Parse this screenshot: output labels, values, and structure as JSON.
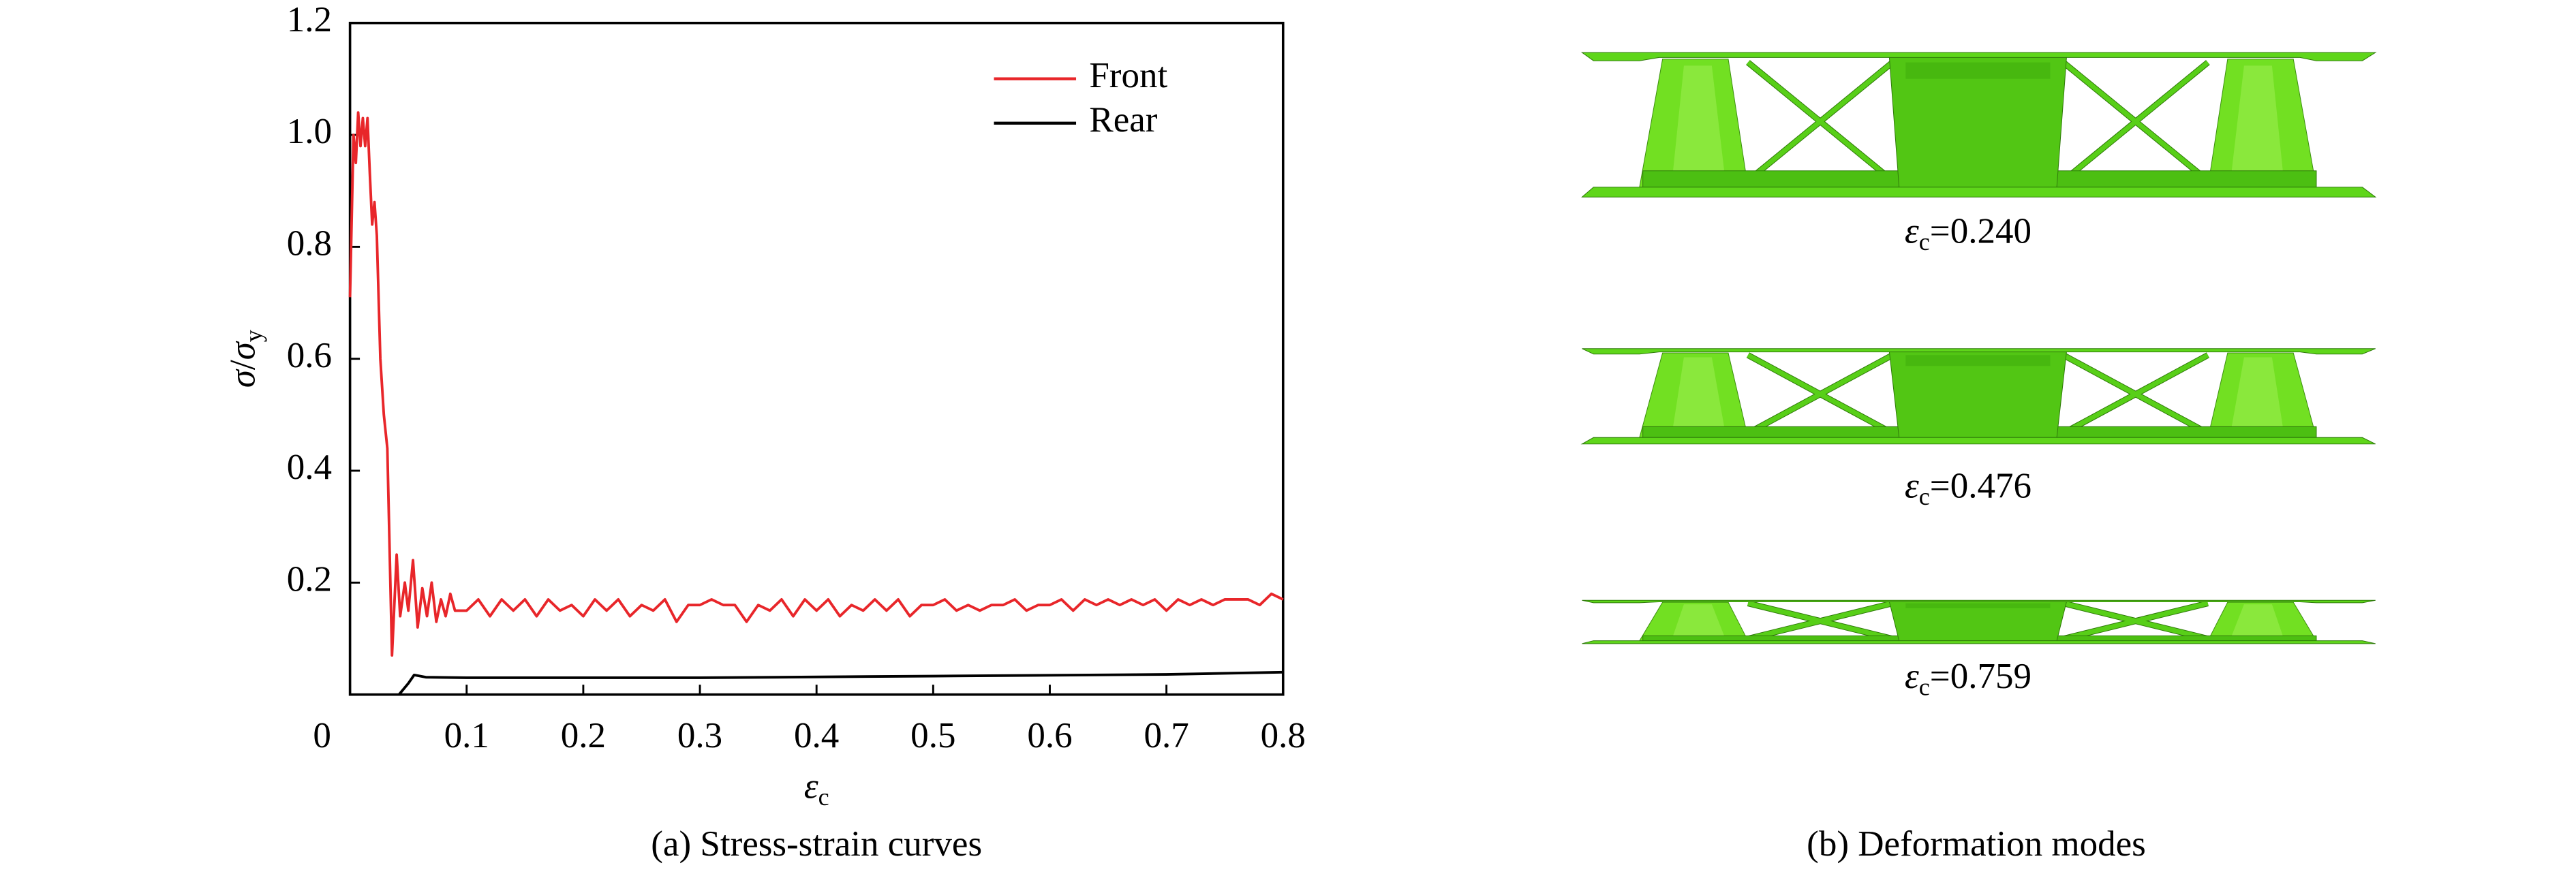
{
  "chart_data": {
    "type": "line",
    "xlabel": [
      "ε",
      "c"
    ],
    "ylabel": [
      "σ",
      "/",
      "σ",
      "y"
    ],
    "caption": "(a) Stress-strain curves",
    "xlim": [
      0,
      0.8
    ],
    "ylim": [
      0,
      1.2
    ],
    "xticks": [
      0,
      0.1,
      0.2,
      0.3,
      0.4,
      0.5,
      0.6,
      0.7,
      0.8
    ],
    "yticks": [
      0.2,
      0.4,
      0.6,
      0.8,
      {
        "value": 1.0,
        "label": "1.0"
      },
      1.2
    ],
    "legend": "upper right",
    "series": [
      {
        "name": "Front",
        "color": "#e8262a",
        "x": [
          0,
          0.003,
          0.005,
          0.007,
          0.009,
          0.011,
          0.013,
          0.015,
          0.017,
          0.019,
          0.021,
          0.023,
          0.026,
          0.029,
          0.032,
          0.036,
          0.04,
          0.043,
          0.047,
          0.05,
          0.054,
          0.058,
          0.062,
          0.066,
          0.07,
          0.074,
          0.078,
          0.082,
          0.086,
          0.09,
          0.1,
          0.11,
          0.12,
          0.13,
          0.14,
          0.15,
          0.16,
          0.17,
          0.18,
          0.19,
          0.2,
          0.21,
          0.22,
          0.23,
          0.24,
          0.25,
          0.26,
          0.27,
          0.28,
          0.29,
          0.3,
          0.31,
          0.32,
          0.33,
          0.34,
          0.35,
          0.36,
          0.37,
          0.38,
          0.39,
          0.4,
          0.41,
          0.42,
          0.43,
          0.44,
          0.45,
          0.46,
          0.47,
          0.48,
          0.49,
          0.5,
          0.51,
          0.52,
          0.53,
          0.54,
          0.55,
          0.56,
          0.57,
          0.58,
          0.59,
          0.6,
          0.61,
          0.62,
          0.63,
          0.64,
          0.65,
          0.66,
          0.67,
          0.68,
          0.69,
          0.7,
          0.71,
          0.72,
          0.73,
          0.74,
          0.75,
          0.76,
          0.77,
          0.78,
          0.79,
          0.8
        ],
        "y": [
          0.71,
          1.0,
          0.95,
          1.04,
          0.98,
          1.03,
          0.98,
          1.03,
          0.93,
          0.84,
          0.88,
          0.82,
          0.6,
          0.5,
          0.44,
          0.07,
          0.25,
          0.14,
          0.2,
          0.15,
          0.24,
          0.12,
          0.19,
          0.14,
          0.2,
          0.13,
          0.17,
          0.14,
          0.18,
          0.15,
          0.15,
          0.17,
          0.14,
          0.17,
          0.15,
          0.17,
          0.14,
          0.17,
          0.15,
          0.16,
          0.14,
          0.17,
          0.15,
          0.17,
          0.14,
          0.16,
          0.15,
          0.17,
          0.13,
          0.16,
          0.16,
          0.17,
          0.16,
          0.16,
          0.13,
          0.16,
          0.15,
          0.17,
          0.14,
          0.17,
          0.15,
          0.17,
          0.14,
          0.16,
          0.15,
          0.17,
          0.15,
          0.17,
          0.14,
          0.16,
          0.16,
          0.17,
          0.15,
          0.16,
          0.15,
          0.16,
          0.16,
          0.17,
          0.15,
          0.16,
          0.16,
          0.17,
          0.15,
          0.17,
          0.16,
          0.17,
          0.16,
          0.17,
          0.16,
          0.17,
          0.15,
          0.17,
          0.16,
          0.17,
          0.16,
          0.17,
          0.17,
          0.17,
          0.16,
          0.18,
          0.17
        ]
      },
      {
        "name": "Rear",
        "color": "#000000",
        "x": [
          0.042,
          0.05,
          0.055,
          0.065,
          0.1,
          0.3,
          0.5,
          0.7,
          0.8
        ],
        "y": [
          0,
          0.02,
          0.035,
          0.031,
          0.03,
          0.03,
          0.033,
          0.036,
          0.04
        ]
      }
    ]
  },
  "deformation": {
    "caption": "(b) Deformation modes",
    "modes": [
      {
        "label": [
          "ε",
          "c",
          "=0.240"
        ]
      },
      {
        "label": [
          "ε",
          "c",
          "=0.476"
        ]
      },
      {
        "label": [
          "ε",
          "c",
          "=0.759"
        ]
      }
    ]
  }
}
